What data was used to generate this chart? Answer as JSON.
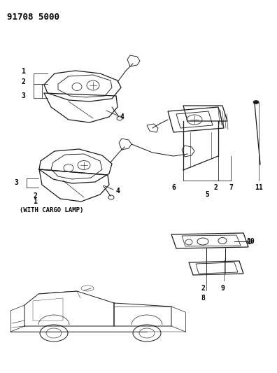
{
  "title": "91708 5000",
  "background_color": "#ffffff",
  "line_color": "#1a1a1a",
  "text_color": "#000000",
  "fig_width": 3.96,
  "fig_height": 5.33,
  "dpi": 100,
  "cargo_lamp_label": "(WITH CARGO LAMP)"
}
